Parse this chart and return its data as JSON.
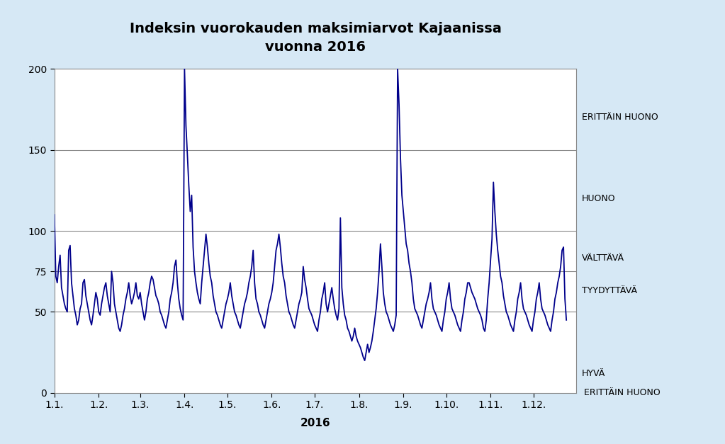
{
  "title": "Indeksin vuorokauden maksimiarvot Kajaanissa\nvuonna 2016",
  "xlabel": "2016",
  "ylim": [
    0,
    200
  ],
  "yticks": [
    0,
    50,
    75,
    100,
    150,
    200
  ],
  "background_color": "#d6e8f5",
  "plot_bg_color": "#ffffff",
  "line_color": "#00008B",
  "line_width": 1.3,
  "title_fontsize": 14,
  "label_fontsize": 11,
  "annotation_fontsize": 9,
  "hline_color": "#888888",
  "hline_lw": 0.8,
  "hlines": [
    50,
    75,
    100,
    150
  ],
  "values": [
    110,
    72,
    68,
    78,
    85,
    65,
    60,
    55,
    52,
    50,
    88,
    91,
    68,
    60,
    52,
    48,
    42,
    45,
    52,
    55,
    68,
    70,
    60,
    55,
    50,
    45,
    42,
    48,
    55,
    62,
    58,
    50,
    48,
    55,
    60,
    65,
    68,
    60,
    55,
    50,
    75,
    68,
    55,
    50,
    45,
    40,
    38,
    42,
    48,
    52,
    58,
    62,
    68,
    60,
    55,
    58,
    62,
    68,
    60,
    58,
    62,
    55,
    50,
    45,
    50,
    58,
    62,
    68,
    72,
    70,
    65,
    60,
    58,
    55,
    50,
    48,
    45,
    42,
    40,
    45,
    50,
    58,
    62,
    68,
    78,
    82,
    68,
    58,
    52,
    48,
    45,
    200,
    165,
    147,
    128,
    112,
    122,
    90,
    75,
    68,
    62,
    58,
    55,
    68,
    78,
    88,
    98,
    90,
    80,
    72,
    68,
    60,
    55,
    50,
    48,
    45,
    42,
    40,
    45,
    50,
    55,
    58,
    62,
    68,
    60,
    55,
    50,
    48,
    45,
    42,
    40,
    45,
    50,
    55,
    58,
    62,
    68,
    72,
    78,
    88,
    68,
    58,
    55,
    50,
    48,
    45,
    42,
    40,
    45,
    50,
    55,
    58,
    62,
    68,
    78,
    88,
    92,
    98,
    90,
    80,
    72,
    68,
    60,
    55,
    50,
    48,
    45,
    42,
    40,
    45,
    50,
    55,
    58,
    62,
    78,
    70,
    65,
    58,
    52,
    50,
    48,
    45,
    42,
    40,
    38,
    45,
    50,
    58,
    62,
    68,
    55,
    50,
    55,
    60,
    65,
    58,
    52,
    48,
    45,
    52,
    108,
    65,
    55,
    48,
    45,
    40,
    38,
    35,
    32,
    35,
    40,
    35,
    32,
    30,
    28,
    25,
    22,
    20,
    25,
    30,
    25,
    28,
    32,
    38,
    45,
    52,
    62,
    75,
    92,
    78,
    62,
    55,
    50,
    48,
    45,
    42,
    40,
    38,
    42,
    48,
    200,
    178,
    145,
    122,
    112,
    102,
    92,
    88,
    80,
    75,
    68,
    58,
    52,
    50,
    48,
    45,
    42,
    40,
    45,
    50,
    55,
    58,
    62,
    68,
    58,
    52,
    50,
    48,
    45,
    42,
    40,
    38,
    45,
    50,
    58,
    62,
    68,
    58,
    52,
    50,
    48,
    45,
    42,
    40,
    38,
    45,
    50,
    58,
    62,
    68,
    68,
    65,
    62,
    60,
    58,
    55,
    52,
    50,
    48,
    45,
    40,
    38,
    45,
    58,
    68,
    82,
    95,
    130,
    112,
    98,
    88,
    80,
    72,
    68,
    60,
    55,
    50,
    48,
    45,
    42,
    40,
    38,
    45,
    50,
    58,
    62,
    68,
    58,
    52,
    50,
    48,
    45,
    42,
    40,
    38,
    45,
    50,
    58,
    62,
    68,
    58,
    52,
    50,
    48,
    45,
    42,
    40,
    38,
    45,
    50,
    58,
    62,
    68,
    72,
    78,
    88,
    90,
    58,
    45
  ],
  "month_labels": [
    "1.1.",
    "1.2.",
    "1.3.",
    "1.4.",
    "1.5.",
    "1.6.",
    "1.7.",
    "1.8.",
    "1.9.",
    "1.10.",
    "1.11.",
    "1.12."
  ],
  "month_positions": [
    0,
    31,
    60,
    91,
    121,
    152,
    182,
    213,
    244,
    274,
    305,
    335
  ]
}
